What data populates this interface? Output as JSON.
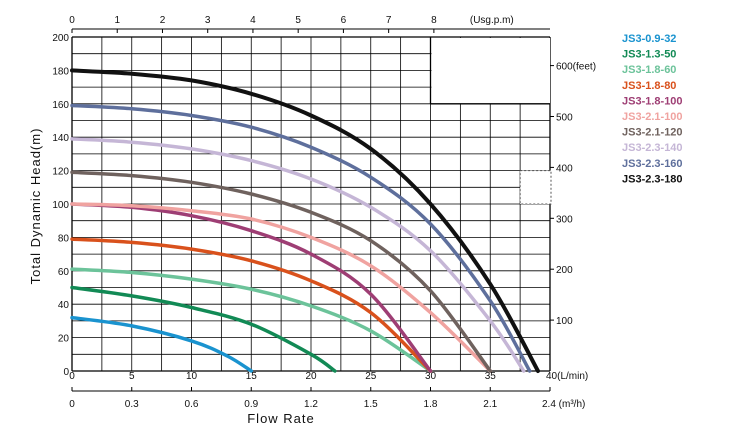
{
  "chart_data": {
    "type": "line",
    "ylabel": "Total Dynamic Head(m)",
    "xlabel": "Flow Rate",
    "ylim": [
      0,
      200
    ],
    "xlim_lmin": [
      0,
      40
    ],
    "grid": true,
    "legend_position": "right",
    "y_ticks": [
      "200",
      "180",
      "160",
      "140",
      "120",
      "100",
      "80",
      "60",
      "40",
      "20",
      "0"
    ],
    "x_ticks_lmin": [
      "0",
      "5",
      "10",
      "15",
      "20",
      "25",
      "30",
      "35",
      "40(L/min)"
    ],
    "x_ticks_m3h": [
      "0",
      "0.3",
      "0.6",
      "0.9",
      "1.2",
      "1.5",
      "1.8",
      "2.1",
      "2.4 (m³/h)"
    ],
    "x_ticks_usgpm": [
      "0",
      "1",
      "2",
      "3",
      "4",
      "5",
      "6",
      "7",
      "8",
      "(Usg.p.m)"
    ],
    "y_ticks_feet": [
      "600(feet)",
      "500",
      "400",
      "300",
      "200",
      "100"
    ],
    "series": [
      {
        "name": "JS3-0.9-32",
        "color": "#1a93cf",
        "x": [
          0,
          5,
          10,
          13,
          15
        ],
        "y": [
          32,
          27,
          18,
          9,
          0
        ]
      },
      {
        "name": "JS3-1.3-50",
        "color": "#128a55",
        "x": [
          0,
          5,
          10,
          15,
          20,
          22
        ],
        "y": [
          50,
          45,
          38,
          28,
          10,
          0
        ]
      },
      {
        "name": "JS3-1.8-60",
        "color": "#6cc39a",
        "x": [
          0,
          5,
          10,
          15,
          20,
          25,
          30
        ],
        "y": [
          61,
          59,
          55,
          49,
          39,
          24,
          0
        ]
      },
      {
        "name": "JS3-1.8-80",
        "color": "#d9511c",
        "x": [
          0,
          5,
          10,
          15,
          20,
          25,
          30
        ],
        "y": [
          79,
          77,
          73,
          66,
          54,
          35,
          0
        ]
      },
      {
        "name": "JS3-1.8-100",
        "color": "#9e3e74",
        "x": [
          0,
          5,
          10,
          15,
          20,
          25,
          30
        ],
        "y": [
          100,
          98,
          93,
          84,
          70,
          46,
          0
        ]
      },
      {
        "name": "JS3-2.1-100",
        "color": "#f0a3a0",
        "x": [
          0,
          5,
          10,
          15,
          20,
          25,
          30,
          35
        ],
        "y": [
          100,
          99,
          96,
          91,
          80,
          63,
          35,
          0
        ]
      },
      {
        "name": "JS3-2.1-120",
        "color": "#6f625e",
        "x": [
          0,
          5,
          10,
          15,
          20,
          25,
          30,
          35
        ],
        "y": [
          119,
          117,
          113,
          106,
          95,
          78,
          48,
          0
        ]
      },
      {
        "name": "JS3-2.3-140",
        "color": "#c5b6d6",
        "x": [
          0,
          5,
          10,
          15,
          20,
          25,
          30,
          35,
          37.8
        ],
        "y": [
          139,
          137,
          133,
          126,
          115,
          98,
          72,
          30,
          0
        ]
      },
      {
        "name": "JS3-2.3-160",
        "color": "#5e6f9c",
        "x": [
          0,
          5,
          10,
          15,
          20,
          25,
          30,
          35,
          38.3
        ],
        "y": [
          159,
          157,
          153,
          146,
          134,
          116,
          88,
          42,
          0
        ]
      },
      {
        "name": "JS3-2.3-180",
        "color": "#111111",
        "x": [
          0,
          5,
          10,
          15,
          20,
          25,
          30,
          35,
          39
        ],
        "y": [
          180,
          178,
          174,
          166,
          153,
          133,
          100,
          52,
          0
        ]
      }
    ]
  }
}
